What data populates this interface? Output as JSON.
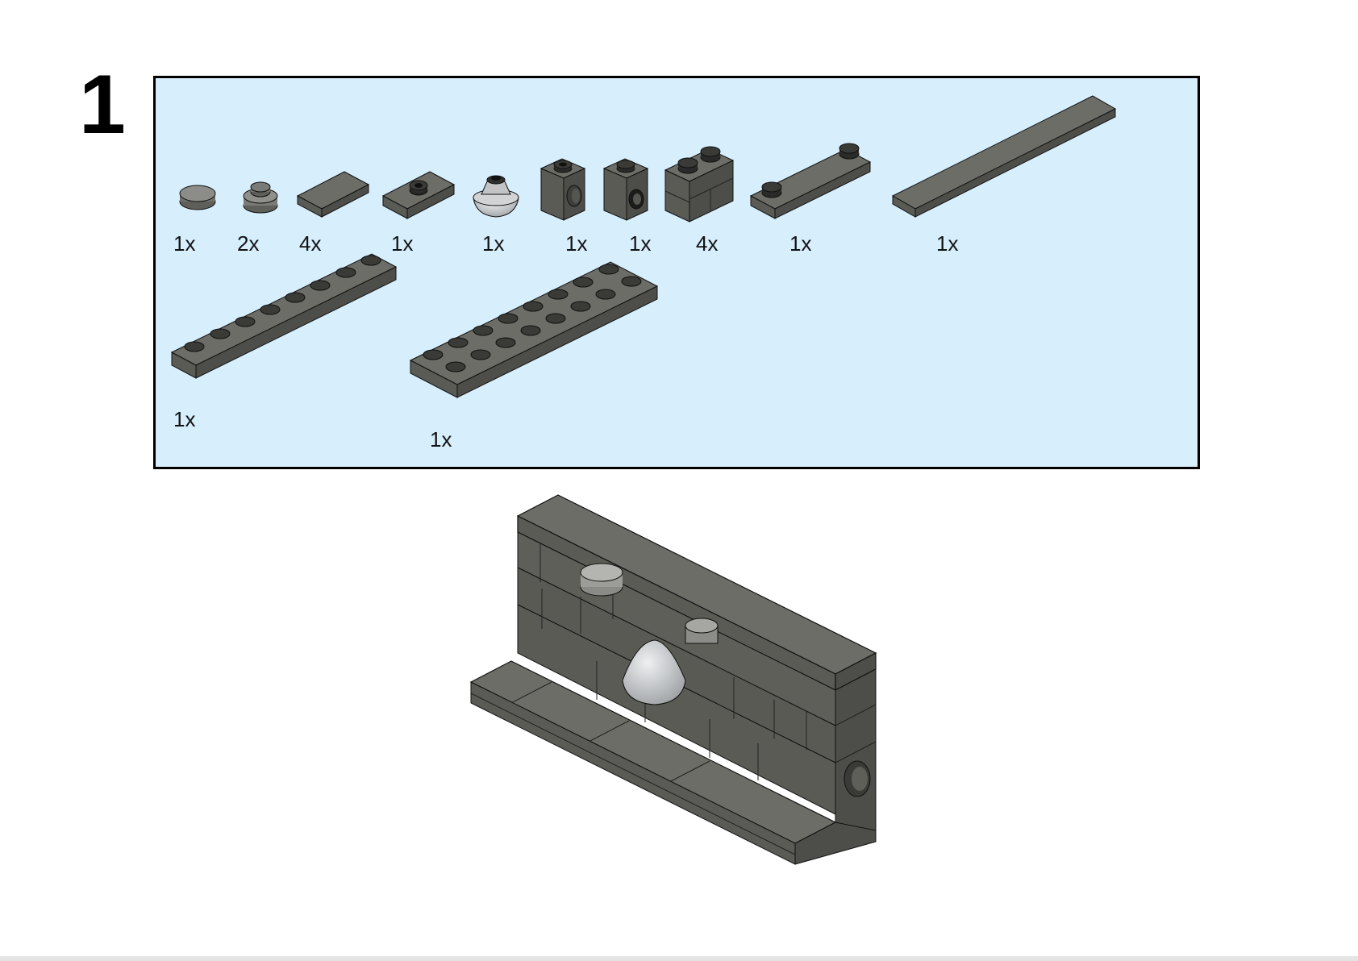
{
  "page": {
    "step_number": "1"
  },
  "parts_list": {
    "items": [
      {
        "name": "round-tile-1x1",
        "quantity": "1x"
      },
      {
        "name": "round-plate-1x1",
        "quantity": "2x"
      },
      {
        "name": "tile-1x2",
        "quantity": "4x"
      },
      {
        "name": "jumper-plate-1x2",
        "quantity": "1x"
      },
      {
        "name": "dome-cone",
        "quantity": "1x"
      },
      {
        "name": "technic-brick-1x1-top",
        "quantity": "1x"
      },
      {
        "name": "technic-brick-1x1-side",
        "quantity": "1x"
      },
      {
        "name": "masonry-brick-1x2",
        "quantity": "4x"
      },
      {
        "name": "plate-1x4-two-studs",
        "quantity": "1x"
      },
      {
        "name": "tile-1x8",
        "quantity": "1x"
      },
      {
        "name": "plate-1x8",
        "quantity": "1x"
      },
      {
        "name": "plate-2x8",
        "quantity": "1x"
      }
    ]
  },
  "colors": {
    "panel_bg": "#d7eefd",
    "brick_top": "#6c6d66",
    "brick_left": "#5a5b55",
    "brick_right": "#4d4e49",
    "light_gray": "#b9bcbf",
    "stud": "#2e2f2c"
  }
}
